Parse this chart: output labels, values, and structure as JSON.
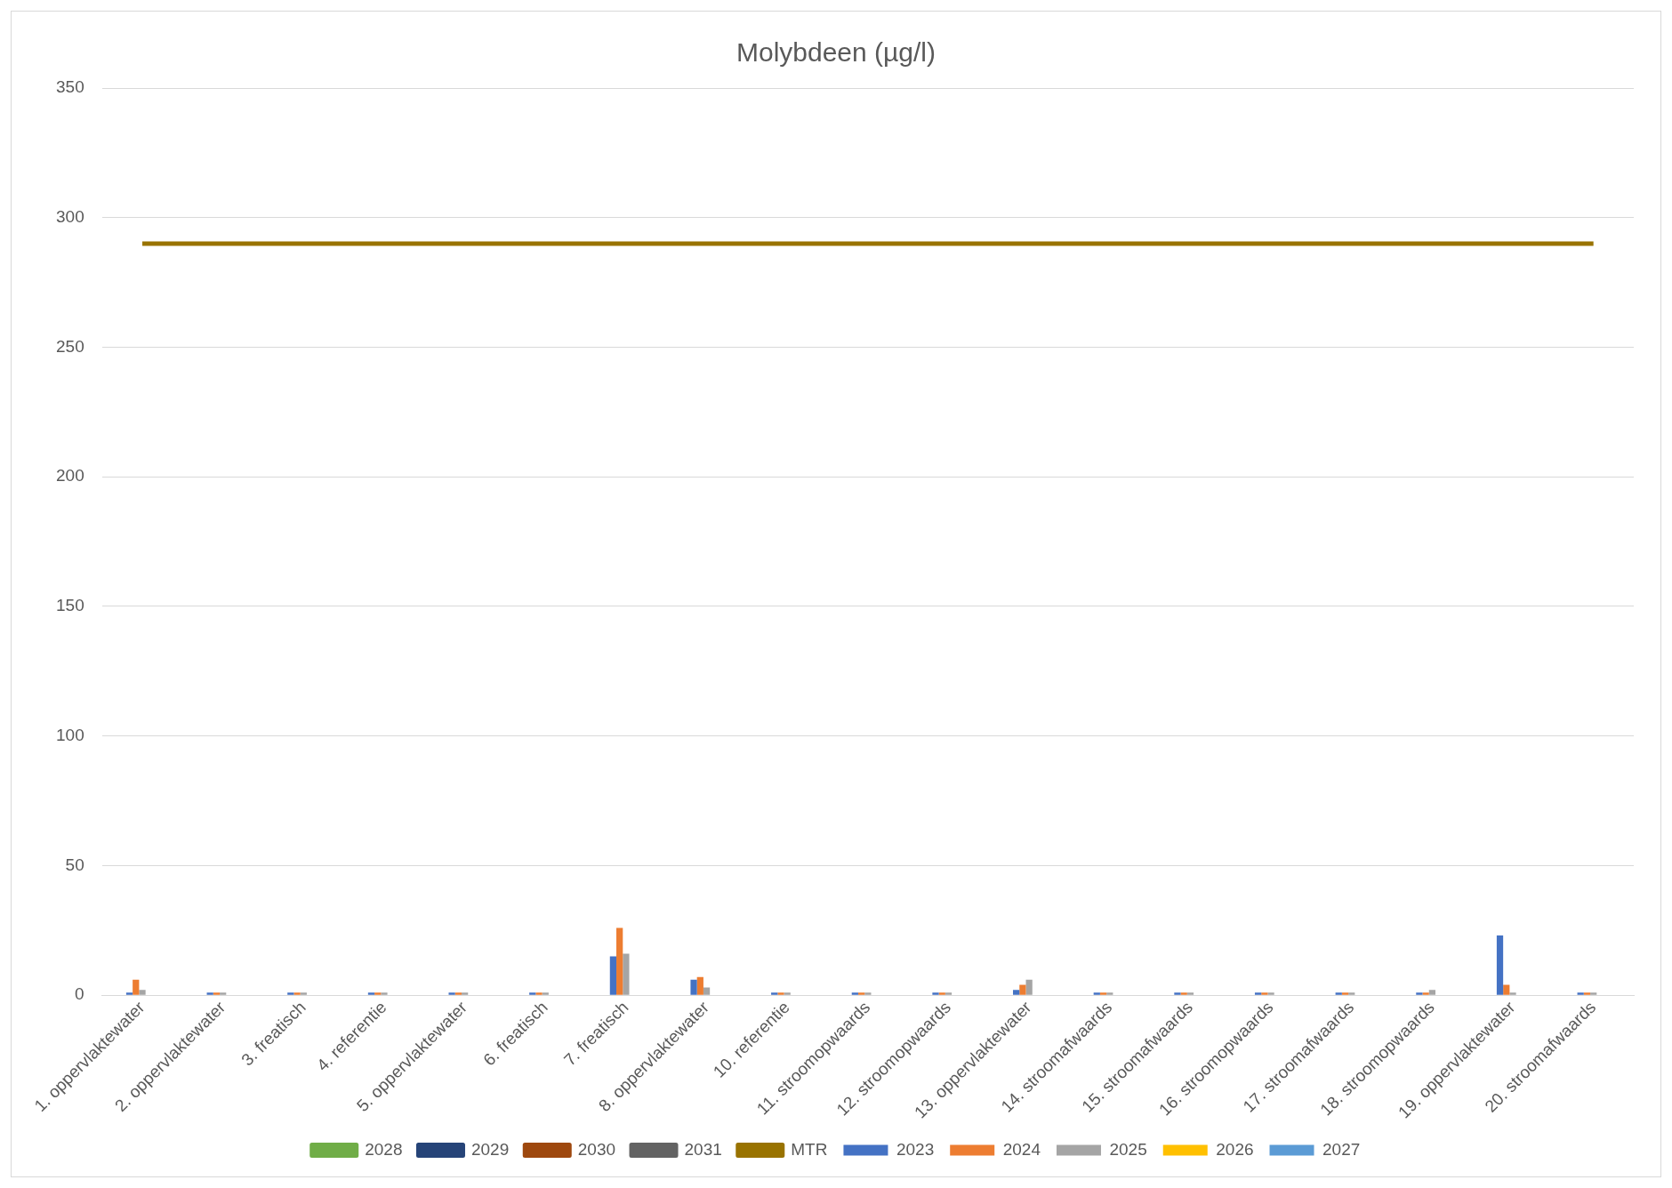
{
  "chart_data": {
    "type": "bar",
    "title": "Molybdeen (µg/l)",
    "categories": [
      "1. oppervlaktewater",
      "2. oppervlaktewater",
      "3. freatisch",
      "4. referentie",
      "5. oppervlaktewater",
      "6. freatisch",
      "7. freatisch",
      "8. oppervlaktewater",
      "10. referentie",
      "11. stroomopwaards",
      "12. stroomopwaards",
      "13. oppervlaktewater",
      "14. stroomafwaards",
      "15. stroomafwaards",
      "16. stroomopwaards",
      "17. stroomafwaards",
      "18. stroomopwaards",
      "19. oppervlaktewater",
      "20. stroomafwaards"
    ],
    "series": [
      {
        "name": "2023",
        "color": "#4472c4",
        "values": [
          1,
          1,
          1,
          1,
          1,
          1,
          15,
          6,
          1,
          1,
          1,
          2,
          1,
          1,
          1,
          1,
          1,
          23,
          1
        ]
      },
      {
        "name": "2024",
        "color": "#ed7d31",
        "values": [
          6,
          1,
          1,
          1,
          1,
          1,
          26,
          7,
          1,
          1,
          1,
          4,
          1,
          1,
          1,
          1,
          1,
          4,
          1
        ]
      },
      {
        "name": "2025",
        "color": "#a5a5a5",
        "values": [
          2,
          1,
          1,
          1,
          1,
          1,
          16,
          3,
          1,
          1,
          1,
          6,
          1,
          1,
          1,
          1,
          2,
          1,
          1
        ]
      },
      {
        "name": "2026",
        "color": "#ffc000",
        "values": [
          null,
          null,
          null,
          null,
          null,
          null,
          null,
          null,
          null,
          null,
          null,
          null,
          null,
          null,
          null,
          null,
          null,
          null,
          null
        ]
      },
      {
        "name": "2027",
        "color": "#5b9bd5",
        "values": [
          null,
          null,
          null,
          null,
          null,
          null,
          null,
          null,
          null,
          null,
          null,
          null,
          null,
          null,
          null,
          null,
          null,
          null,
          null
        ]
      },
      {
        "name": "2028",
        "type": "line",
        "color": "#70ad47",
        "values": [
          null,
          null,
          null,
          null,
          null,
          null,
          null,
          null,
          null,
          null,
          null,
          null,
          null,
          null,
          null,
          null,
          null,
          null,
          null
        ]
      },
      {
        "name": "2029",
        "type": "line",
        "color": "#264478",
        "values": [
          null,
          null,
          null,
          null,
          null,
          null,
          null,
          null,
          null,
          null,
          null,
          null,
          null,
          null,
          null,
          null,
          null,
          null,
          null
        ]
      },
      {
        "name": "2030",
        "type": "line",
        "color": "#9e480e",
        "values": [
          null,
          null,
          null,
          null,
          null,
          null,
          null,
          null,
          null,
          null,
          null,
          null,
          null,
          null,
          null,
          null,
          null,
          null,
          null
        ]
      },
      {
        "name": "2031",
        "type": "line",
        "color": "#636363",
        "values": [
          null,
          null,
          null,
          null,
          null,
          null,
          null,
          null,
          null,
          null,
          null,
          null,
          null,
          null,
          null,
          null,
          null,
          null,
          null
        ]
      },
      {
        "name": "MTR",
        "type": "line",
        "color": "#997300",
        "values": [
          290,
          290,
          290,
          290,
          290,
          290,
          290,
          290,
          290,
          290,
          290,
          290,
          290,
          290,
          290,
          290,
          290,
          290,
          290
        ]
      }
    ],
    "ylim": [
      0,
      350
    ],
    "yticks": [
      0,
      50,
      100,
      150,
      200,
      250,
      300,
      350
    ],
    "grid": "y",
    "legend": "bottom",
    "marker": "none"
  }
}
